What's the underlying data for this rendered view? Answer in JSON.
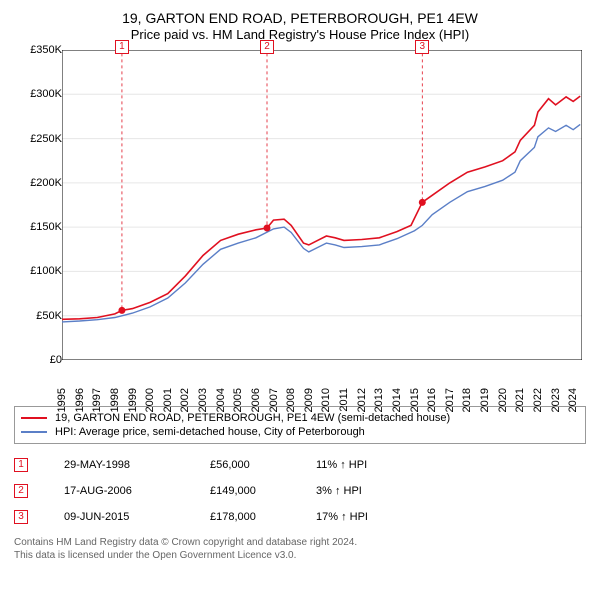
{
  "title": "19, GARTON END ROAD, PETERBOROUGH, PE1 4EW",
  "subtitle": "Price paid vs. HM Land Registry's House Price Index (HPI)",
  "chart": {
    "type": "line",
    "background_color": "#ffffff",
    "grid_color": "#e6e6e6",
    "axis_color": "#000000",
    "x": {
      "min": 1995,
      "max": 2024.5,
      "ticks": [
        1995,
        1996,
        1997,
        1998,
        1999,
        2000,
        2001,
        2002,
        2003,
        2004,
        2005,
        2006,
        2007,
        2008,
        2009,
        2010,
        2011,
        2012,
        2013,
        2014,
        2015,
        2016,
        2017,
        2018,
        2019,
        2020,
        2021,
        2022,
        2023,
        2024
      ]
    },
    "y": {
      "min": 0,
      "max": 350000,
      "ticks": [
        0,
        50000,
        100000,
        150000,
        200000,
        250000,
        300000,
        350000
      ],
      "tick_labels": [
        "£0",
        "£50K",
        "£100K",
        "£150K",
        "£200K",
        "£250K",
        "£300K",
        "£350K"
      ]
    },
    "series": {
      "property": {
        "label": "19, GARTON END ROAD, PETERBOROUGH, PE1 4EW (semi-detached house)",
        "color": "#e01020",
        "line_width": 1.6,
        "points": [
          [
            1995,
            46000
          ],
          [
            1996,
            46500
          ],
          [
            1997,
            48000
          ],
          [
            1998,
            52000
          ],
          [
            1998.4,
            56000
          ],
          [
            1999,
            58000
          ],
          [
            2000,
            65000
          ],
          [
            2001,
            75000
          ],
          [
            2002,
            95000
          ],
          [
            2003,
            118000
          ],
          [
            2004,
            135000
          ],
          [
            2005,
            142000
          ],
          [
            2006,
            147000
          ],
          [
            2006.63,
            149000
          ],
          [
            2007,
            158000
          ],
          [
            2007.6,
            159000
          ],
          [
            2008,
            152000
          ],
          [
            2008.7,
            132000
          ],
          [
            2009,
            130000
          ],
          [
            2009.5,
            135000
          ],
          [
            2010,
            140000
          ],
          [
            2010.5,
            138000
          ],
          [
            2011,
            135000
          ],
          [
            2012,
            136000
          ],
          [
            2013,
            138000
          ],
          [
            2014,
            145000
          ],
          [
            2014.8,
            152000
          ],
          [
            2015.44,
            178000
          ],
          [
            2016,
            186000
          ],
          [
            2017,
            200000
          ],
          [
            2018,
            212000
          ],
          [
            2019,
            218000
          ],
          [
            2020,
            225000
          ],
          [
            2020.7,
            235000
          ],
          [
            2021,
            248000
          ],
          [
            2021.8,
            265000
          ],
          [
            2022,
            280000
          ],
          [
            2022.6,
            295000
          ],
          [
            2023,
            288000
          ],
          [
            2023.6,
            297000
          ],
          [
            2024,
            292000
          ],
          [
            2024.4,
            298000
          ]
        ]
      },
      "hpi": {
        "label": "HPI: Average price, semi-detached house, City of Peterborough",
        "color": "#5b7fc7",
        "line_width": 1.4,
        "points": [
          [
            1995,
            43000
          ],
          [
            1996,
            44000
          ],
          [
            1997,
            45500
          ],
          [
            1998,
            48000
          ],
          [
            1999,
            53000
          ],
          [
            2000,
            60000
          ],
          [
            2001,
            70000
          ],
          [
            2002,
            87000
          ],
          [
            2003,
            108000
          ],
          [
            2004,
            125000
          ],
          [
            2005,
            132000
          ],
          [
            2006,
            138000
          ],
          [
            2007,
            148000
          ],
          [
            2007.6,
            150000
          ],
          [
            2008,
            144000
          ],
          [
            2008.7,
            126000
          ],
          [
            2009,
            122000
          ],
          [
            2009.5,
            127000
          ],
          [
            2010,
            132000
          ],
          [
            2010.5,
            130000
          ],
          [
            2011,
            127000
          ],
          [
            2012,
            128000
          ],
          [
            2013,
            130000
          ],
          [
            2014,
            137000
          ],
          [
            2015,
            146000
          ],
          [
            2015.44,
            152000
          ],
          [
            2016,
            164000
          ],
          [
            2017,
            178000
          ],
          [
            2018,
            190000
          ],
          [
            2019,
            196000
          ],
          [
            2020,
            203000
          ],
          [
            2020.7,
            212000
          ],
          [
            2021,
            225000
          ],
          [
            2021.8,
            240000
          ],
          [
            2022,
            252000
          ],
          [
            2022.6,
            262000
          ],
          [
            2023,
            258000
          ],
          [
            2023.6,
            265000
          ],
          [
            2024,
            260000
          ],
          [
            2024.4,
            266000
          ]
        ]
      }
    },
    "markers": [
      {
        "n": "1",
        "x": 1998.4,
        "y_top": 345000,
        "box_color": "#e01020",
        "point_y": 56000
      },
      {
        "n": "2",
        "x": 2006.63,
        "y_top": 345000,
        "box_color": "#e01020",
        "point_y": 149000
      },
      {
        "n": "3",
        "x": 2015.44,
        "y_top": 345000,
        "box_color": "#e01020",
        "point_y": 178000
      }
    ],
    "tick_font_size": 11
  },
  "legend": [
    {
      "series": "property"
    },
    {
      "series": "hpi"
    }
  ],
  "events": [
    {
      "n": "1",
      "date": "29-MAY-1998",
      "price": "£56,000",
      "hpi": "11% ↑ HPI",
      "box_color": "#e01020"
    },
    {
      "n": "2",
      "date": "17-AUG-2006",
      "price": "£149,000",
      "hpi": "3% ↑ HPI",
      "box_color": "#e01020"
    },
    {
      "n": "3",
      "date": "09-JUN-2015",
      "price": "£178,000",
      "hpi": "17% ↑ HPI",
      "box_color": "#e01020"
    }
  ],
  "attribution": {
    "line1": "Contains HM Land Registry data © Crown copyright and database right 2024.",
    "line2": "This data is licensed under the Open Government Licence v3.0."
  }
}
